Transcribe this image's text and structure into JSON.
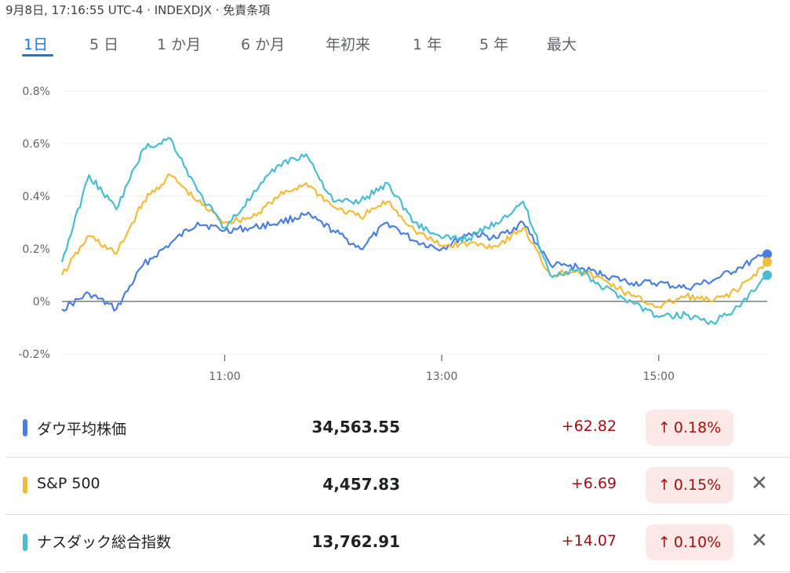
{
  "header": {
    "text": "9月8日, 17:16:55 UTC-4 · INDEXDJX · 免責条項"
  },
  "tabs": [
    "1日",
    "5 日",
    "1 か月",
    "6 か月",
    "年初来",
    "1 年",
    "5 年",
    "最大"
  ],
  "active_tab": "1日",
  "colors": {
    "dow": "#4a7fe0",
    "sp500": "#f2bb3a",
    "nasdaq": "#48bcd1",
    "up": "#a50e0e",
    "pill_bg": "#fce8e6",
    "accent": "#1a73e8"
  },
  "chart_data": {
    "type": "line",
    "ylim": [
      -0.2,
      0.8
    ],
    "yticks": [
      "0.8%",
      "0.6%",
      "0.4%",
      "0.2%",
      "0%",
      "-0.2%"
    ],
    "xticks": [
      "11:00",
      "13:00",
      "15:00"
    ],
    "x_start": "9:30",
    "x_end": "16:00",
    "series": [
      {
        "name": "ダウ平均株価",
        "color": "#4a7fe0",
        "x": [
          "9:30",
          "9:45",
          "10:00",
          "10:15",
          "10:30",
          "10:45",
          "11:00",
          "11:15",
          "11:30",
          "11:45",
          "12:00",
          "12:15",
          "12:30",
          "12:45",
          "13:00",
          "13:15",
          "13:30",
          "13:45",
          "14:00",
          "14:15",
          "14:30",
          "14:45",
          "15:00",
          "15:15",
          "15:30",
          "15:45",
          "16:00"
        ],
        "values": [
          -0.03,
          0.03,
          -0.03,
          0.14,
          0.22,
          0.3,
          0.27,
          0.28,
          0.3,
          0.33,
          0.27,
          0.2,
          0.3,
          0.23,
          0.2,
          0.26,
          0.24,
          0.3,
          0.14,
          0.13,
          0.1,
          0.07,
          0.07,
          0.05,
          0.08,
          0.13,
          0.18
        ]
      },
      {
        "name": "S&P 500",
        "color": "#f2bb3a",
        "x": [
          "9:30",
          "9:45",
          "10:00",
          "10:15",
          "10:30",
          "10:45",
          "11:00",
          "11:15",
          "11:30",
          "11:45",
          "12:00",
          "12:15",
          "12:30",
          "12:45",
          "13:00",
          "13:15",
          "13:30",
          "13:45",
          "14:00",
          "14:15",
          "14:30",
          "14:45",
          "15:00",
          "15:15",
          "15:30",
          "15:45",
          "16:00"
        ],
        "values": [
          0.1,
          0.25,
          0.18,
          0.38,
          0.48,
          0.38,
          0.3,
          0.32,
          0.4,
          0.45,
          0.36,
          0.32,
          0.38,
          0.27,
          0.21,
          0.22,
          0.21,
          0.28,
          0.1,
          0.12,
          0.08,
          0.02,
          -0.02,
          0.02,
          0.0,
          0.05,
          0.15
        ]
      },
      {
        "name": "ナスダック総合指数",
        "color": "#48bcd1",
        "x": [
          "9:30",
          "9:45",
          "10:00",
          "10:15",
          "10:30",
          "10:45",
          "11:00",
          "11:15",
          "11:30",
          "11:45",
          "12:00",
          "12:15",
          "12:30",
          "12:45",
          "13:00",
          "13:15",
          "13:30",
          "13:45",
          "14:00",
          "14:15",
          "14:30",
          "14:45",
          "15:00",
          "15:15",
          "15:30",
          "15:45",
          "16:00"
        ],
        "values": [
          0.15,
          0.48,
          0.35,
          0.58,
          0.62,
          0.42,
          0.28,
          0.4,
          0.52,
          0.56,
          0.38,
          0.38,
          0.45,
          0.3,
          0.24,
          0.24,
          0.3,
          0.38,
          0.1,
          0.12,
          0.05,
          0.0,
          -0.06,
          -0.05,
          -0.08,
          -0.02,
          0.1
        ]
      }
    ]
  },
  "legend": [
    {
      "name": "ダウ平均株価",
      "price": "34,563.55",
      "change": "+62.82",
      "pct": "0.18%",
      "closable": false
    },
    {
      "name": "S&P 500",
      "price": "4,457.83",
      "change": "+6.69",
      "pct": "0.15%",
      "closable": true
    },
    {
      "name": "ナスダック総合指数",
      "price": "13,762.91",
      "change": "+14.07",
      "pct": "0.10%",
      "closable": true
    }
  ],
  "icons": {
    "up_arrow": "↑",
    "close": "✕"
  }
}
